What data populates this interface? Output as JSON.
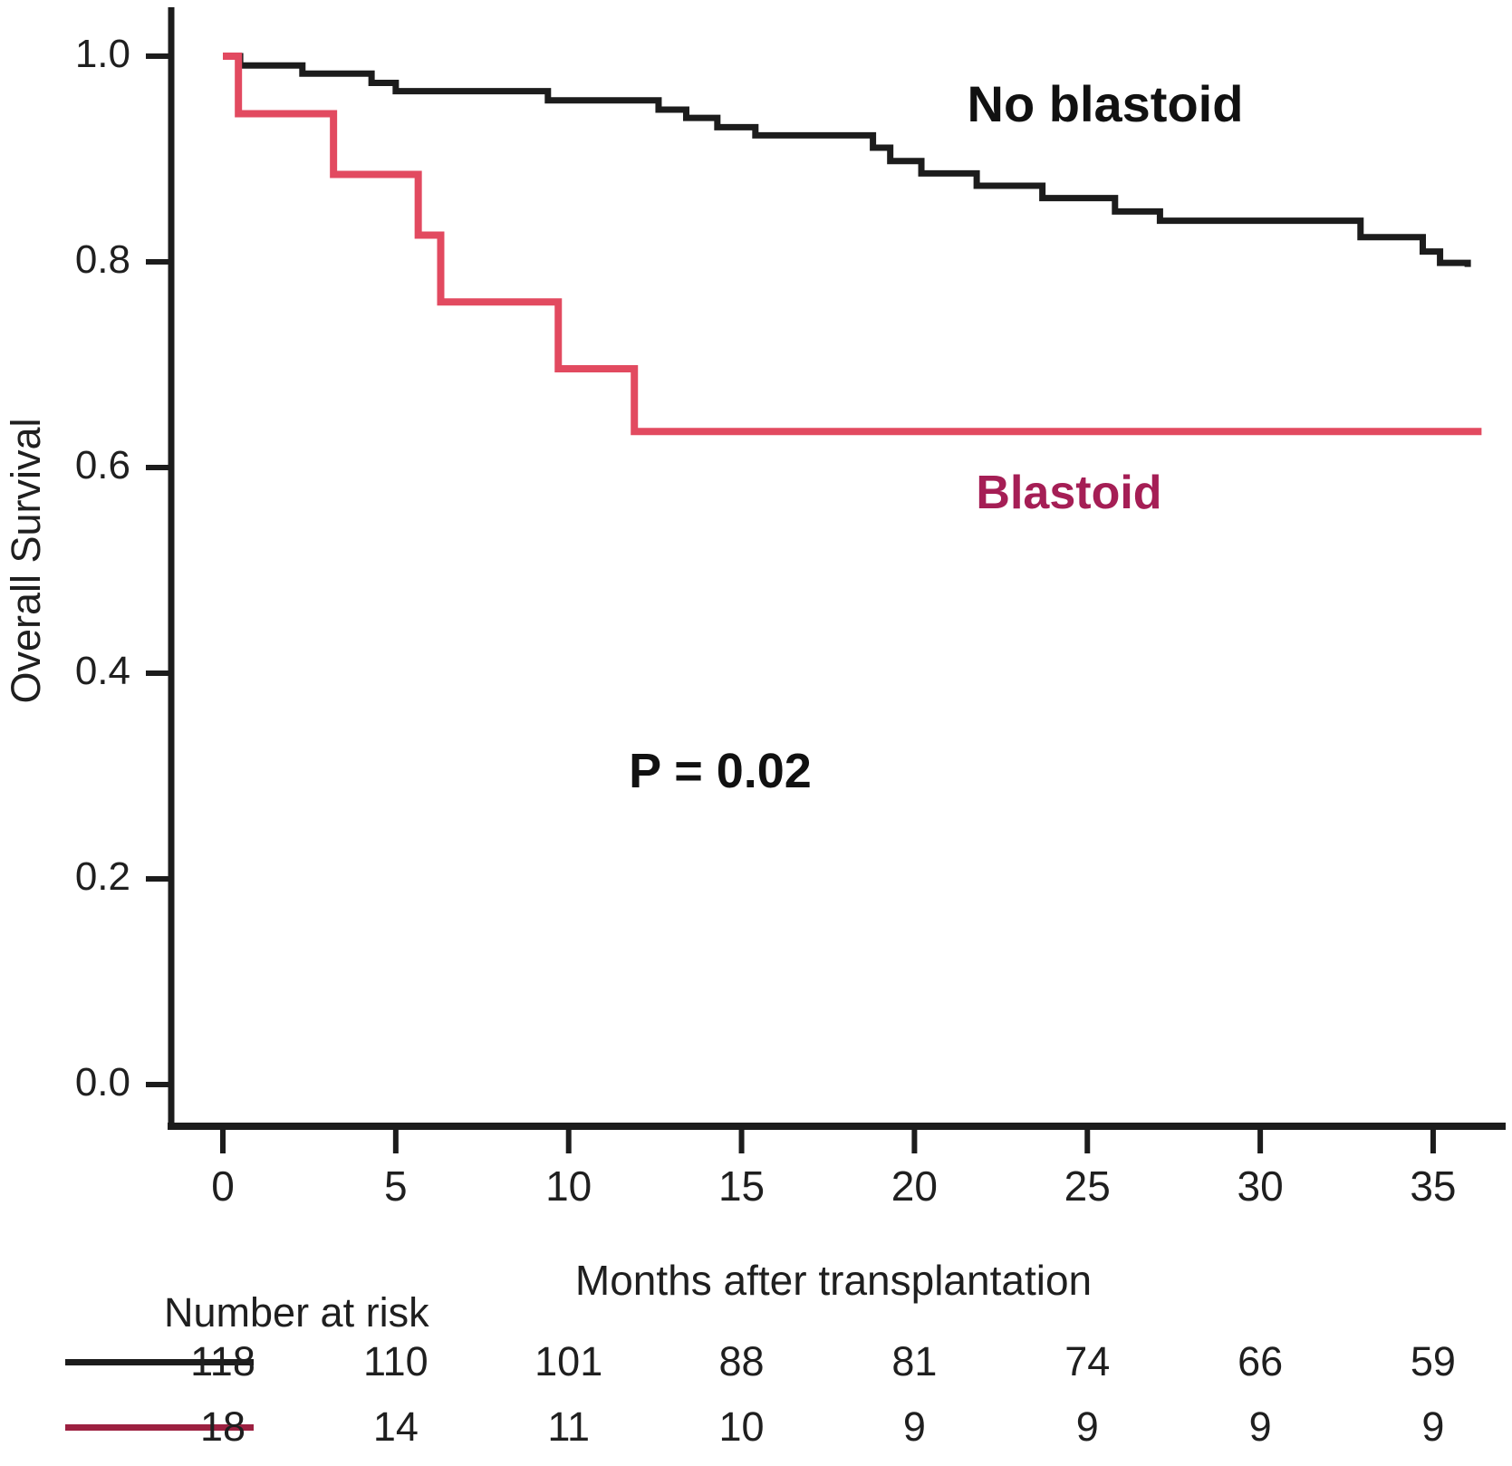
{
  "chart_data": {
    "type": "line",
    "subtype": "kaplan-meier-step",
    "title": "",
    "xlabel": "Months after transplantation",
    "ylabel": "Overall Survival",
    "xlim": [
      0,
      37
    ],
    "ylim": [
      0.0,
      1.0
    ],
    "grid": false,
    "x_ticks": [
      0,
      5,
      10,
      15,
      20,
      25,
      30,
      35
    ],
    "y_ticks": [
      1.0,
      0.8,
      0.6,
      0.4,
      0.2,
      0.0
    ],
    "y_tick_labels": [
      "1.0",
      "0.8",
      "0.6",
      "0.4",
      "0.2",
      "0.0"
    ],
    "x_tick_labels": [
      "0",
      "5",
      "10",
      "15",
      "20",
      "25",
      "30",
      "35"
    ],
    "annotations": [
      {
        "text": "P = 0.02",
        "x": 14,
        "y": 0.3
      }
    ],
    "series": [
      {
        "name": "No blastoid",
        "color": "#1c1c1c",
        "line_width": 7,
        "points": [
          [
            0,
            1.0
          ],
          [
            0.5,
            0.991
          ],
          [
            2.3,
            0.983
          ],
          [
            4.3,
            0.974
          ],
          [
            5.0,
            0.966
          ],
          [
            9.4,
            0.957
          ],
          [
            12.6,
            0.948
          ],
          [
            13.4,
            0.94
          ],
          [
            14.3,
            0.931
          ],
          [
            15.4,
            0.923
          ],
          [
            18.8,
            0.911
          ],
          [
            19.3,
            0.898
          ],
          [
            20.2,
            0.886
          ],
          [
            21.8,
            0.874
          ],
          [
            23.7,
            0.862
          ],
          [
            25.8,
            0.849
          ],
          [
            27.1,
            0.84
          ],
          [
            32.9,
            0.824
          ],
          [
            34.7,
            0.81
          ],
          [
            35.2,
            0.799
          ],
          [
            36.0,
            0.795
          ]
        ]
      },
      {
        "name": "Blastoid",
        "color": "#e24a60",
        "label_color": "#a51e55",
        "line_width": 8,
        "points": [
          [
            0,
            1.0
          ],
          [
            0.45,
            0.944
          ],
          [
            3.2,
            0.885
          ],
          [
            5.65,
            0.826
          ],
          [
            6.3,
            0.761
          ],
          [
            9.7,
            0.696
          ],
          [
            11.9,
            0.635
          ],
          [
            36.4,
            0.635
          ]
        ]
      }
    ]
  },
  "risk_table": {
    "title": "Number at risk",
    "columns": [
      0,
      5,
      10,
      15,
      20,
      25,
      30,
      35
    ],
    "rows": [
      {
        "name": "No blastoid",
        "swatch_color": "#1c1c1c",
        "values": [
          "118",
          "110",
          "101",
          "88",
          "81",
          "74",
          "66",
          "59"
        ]
      },
      {
        "name": "Blastoid",
        "swatch_color": "#9c2040",
        "values": [
          "18",
          "14",
          "11",
          "10",
          "9",
          "9",
          "9",
          "9"
        ]
      }
    ]
  }
}
